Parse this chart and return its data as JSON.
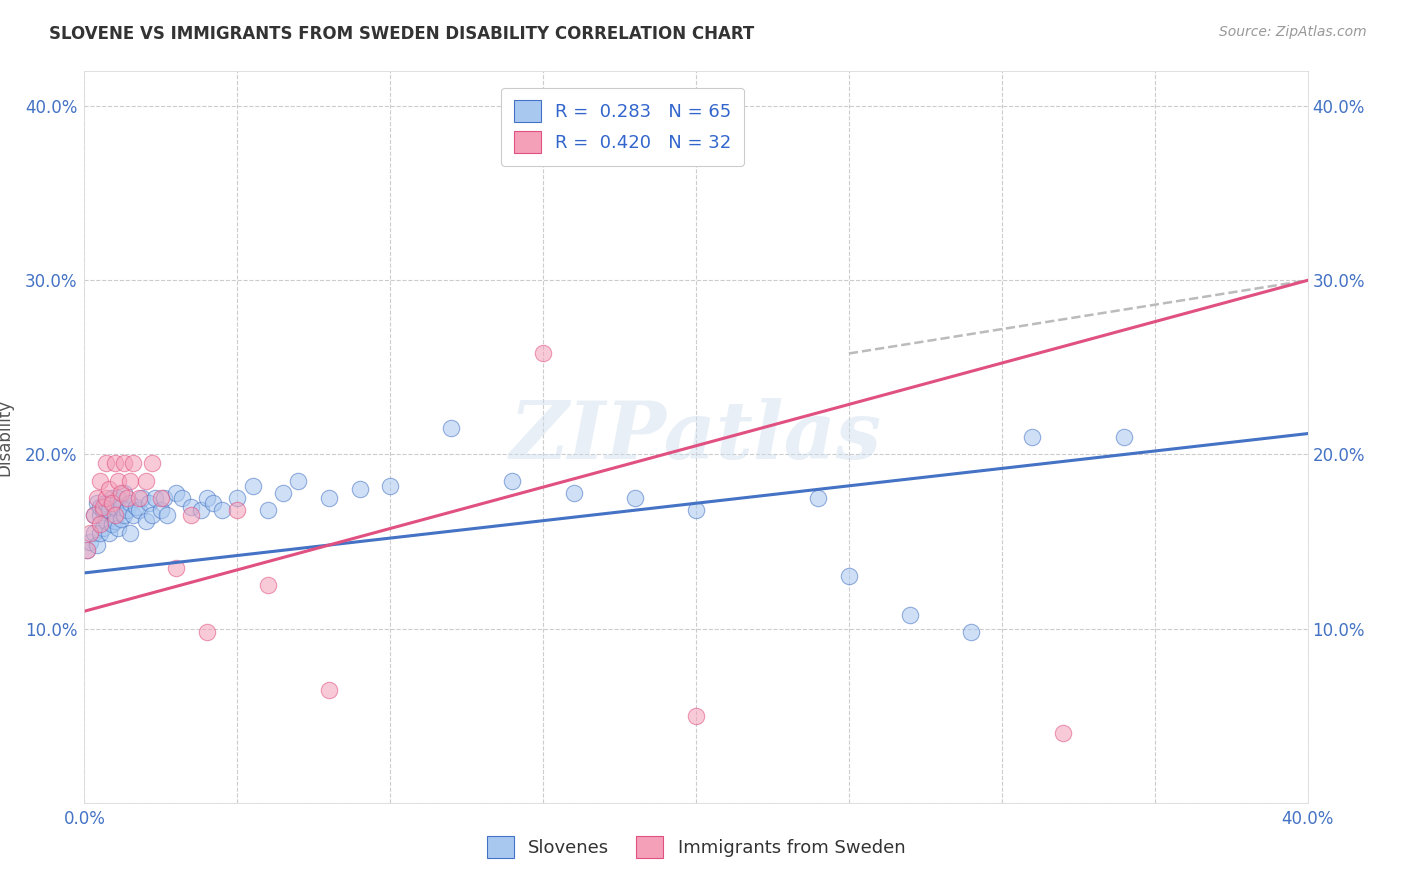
{
  "title": "SLOVENE VS IMMIGRANTS FROM SWEDEN DISABILITY CORRELATION CHART",
  "source_text": "Source: ZipAtlas.com",
  "ylabel": "Disability",
  "xlabel": "",
  "xlim": [
    0.0,
    0.4
  ],
  "ylim": [
    0.0,
    0.42
  ],
  "slovene_color": "#A8C8F0",
  "immigrant_color": "#F4A0B8",
  "slovene_line_color": "#4472C4",
  "immigrant_line_color": "#E05080",
  "immigrant_trendline_color": "#AAAAAA",
  "watermark": "ZIPatlas",
  "slovene_x": [
    0.001,
    0.002,
    0.003,
    0.003,
    0.004,
    0.004,
    0.005,
    0.005,
    0.005,
    0.006,
    0.006,
    0.007,
    0.007,
    0.008,
    0.008,
    0.009,
    0.009,
    0.01,
    0.01,
    0.011,
    0.011,
    0.012,
    0.012,
    0.013,
    0.013,
    0.014,
    0.015,
    0.015,
    0.016,
    0.017,
    0.018,
    0.019,
    0.02,
    0.021,
    0.022,
    0.023,
    0.025,
    0.026,
    0.027,
    0.03,
    0.032,
    0.035,
    0.038,
    0.04,
    0.042,
    0.045,
    0.05,
    0.055,
    0.06,
    0.065,
    0.07,
    0.08,
    0.09,
    0.1,
    0.12,
    0.14,
    0.16,
    0.18,
    0.2,
    0.24,
    0.25,
    0.27,
    0.29,
    0.31,
    0.34
  ],
  "slovene_y": [
    0.145,
    0.15,
    0.155,
    0.165,
    0.148,
    0.172,
    0.155,
    0.165,
    0.17,
    0.158,
    0.168,
    0.162,
    0.172,
    0.155,
    0.168,
    0.16,
    0.175,
    0.162,
    0.17,
    0.158,
    0.175,
    0.163,
    0.17,
    0.165,
    0.178,
    0.168,
    0.155,
    0.172,
    0.165,
    0.17,
    0.168,
    0.175,
    0.162,
    0.172,
    0.165,
    0.175,
    0.168,
    0.175,
    0.165,
    0.178,
    0.175,
    0.17,
    0.168,
    0.175,
    0.172,
    0.168,
    0.175,
    0.182,
    0.168,
    0.178,
    0.185,
    0.175,
    0.18,
    0.182,
    0.215,
    0.185,
    0.178,
    0.175,
    0.168,
    0.175,
    0.13,
    0.108,
    0.098,
    0.21,
    0.21
  ],
  "immigrant_x": [
    0.001,
    0.002,
    0.003,
    0.004,
    0.005,
    0.005,
    0.006,
    0.007,
    0.007,
    0.008,
    0.009,
    0.01,
    0.01,
    0.011,
    0.012,
    0.013,
    0.014,
    0.015,
    0.016,
    0.018,
    0.02,
    0.022,
    0.025,
    0.03,
    0.035,
    0.04,
    0.05,
    0.06,
    0.08,
    0.15,
    0.2,
    0.32
  ],
  "immigrant_y": [
    0.145,
    0.155,
    0.165,
    0.175,
    0.16,
    0.185,
    0.17,
    0.175,
    0.195,
    0.18,
    0.172,
    0.165,
    0.195,
    0.185,
    0.178,
    0.195,
    0.175,
    0.185,
    0.195,
    0.175,
    0.185,
    0.195,
    0.175,
    0.135,
    0.165,
    0.098,
    0.168,
    0.125,
    0.065,
    0.258,
    0.05,
    0.04
  ],
  "slovene_line_start_x": 0.0,
  "slovene_line_end_x": 0.4,
  "slovene_line_start_y": 0.132,
  "slovene_line_end_y": 0.212,
  "immigrant_line_start_x": 0.0,
  "immigrant_line_end_x": 0.4,
  "immigrant_line_start_y": 0.11,
  "immigrant_line_end_y": 0.3
}
